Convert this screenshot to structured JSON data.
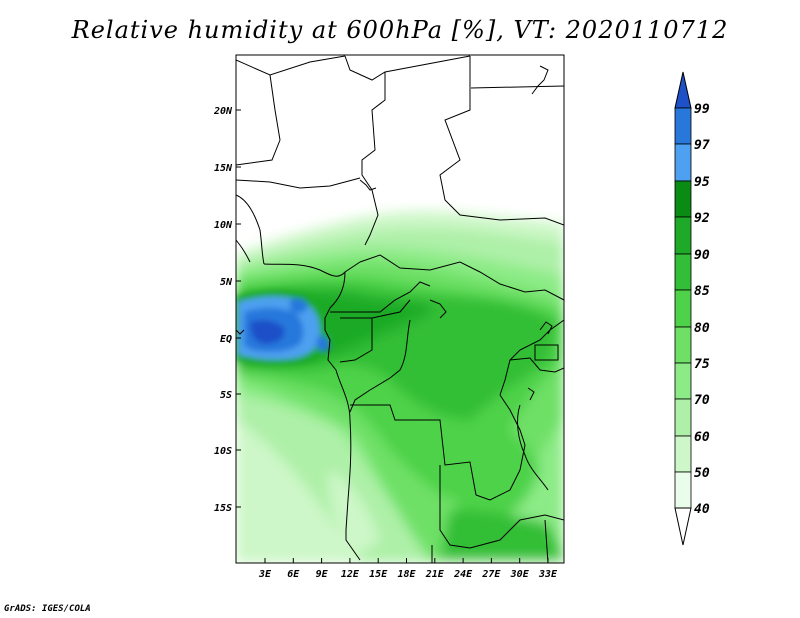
{
  "title": "Relative humidity at 600hPa [%], VT: 2020110712",
  "credit": "GrADS: IGES/COLA",
  "map": {
    "lat_labels": [
      "20N",
      "15N",
      "10N",
      "5N",
      "EQ",
      "5S",
      "10S",
      "15S"
    ],
    "lon_labels": [
      "3E",
      "6E",
      "9E",
      "12E",
      "15E",
      "18E",
      "21E",
      "24E",
      "27E",
      "30E",
      "33E"
    ]
  },
  "colorbar": {
    "labels": [
      "99",
      "97",
      "95",
      "92",
      "90",
      "85",
      "80",
      "75",
      "70",
      "60",
      "50",
      "40"
    ],
    "colors": [
      "#1e50c8",
      "#2878dc",
      "#4ea0f0",
      "#0a8c14",
      "#1eaa28",
      "#32be36",
      "#4ed24a",
      "#6ee066",
      "#8ceb86",
      "#aef0a8",
      "#cdf7c8",
      "#eafcea",
      "#ffffff"
    ]
  }
}
